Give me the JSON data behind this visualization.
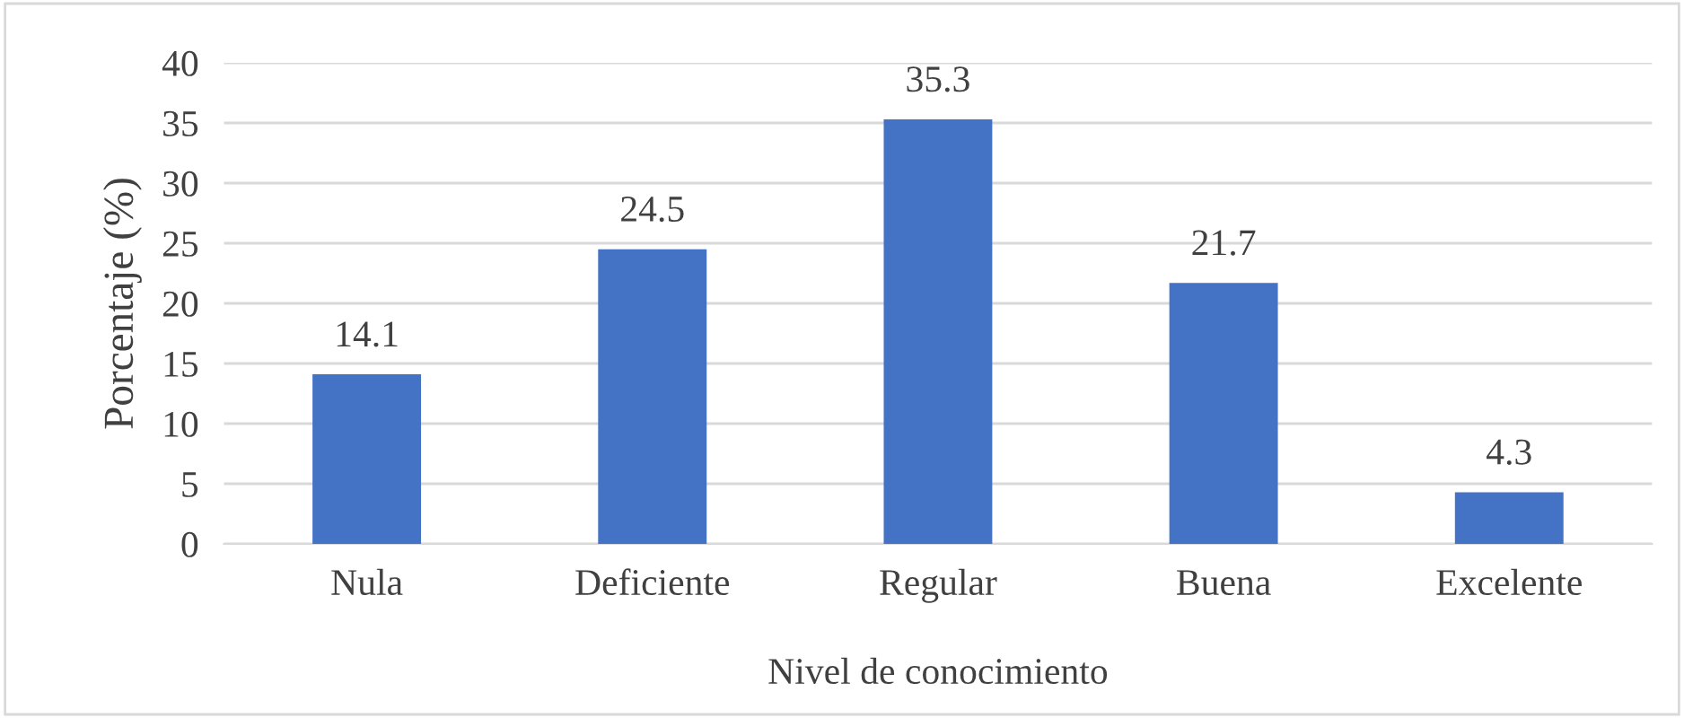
{
  "chart_data": {
    "type": "bar",
    "xlabel": "Nivel de conocimiento",
    "ylabel": "Porcentaje (%)",
    "categories": [
      "Nula",
      "Deficiente",
      "Regular",
      "Buena",
      "Excelente"
    ],
    "values": [
      14.1,
      24.5,
      35.3,
      21.7,
      4.3
    ],
    "color": "#4472c4",
    "ylim": [
      0,
      40
    ],
    "yticks": [
      0,
      5,
      10,
      15,
      20,
      25,
      30,
      35,
      40
    ],
    "grid": "y",
    "data_labels": true,
    "legend": false
  }
}
